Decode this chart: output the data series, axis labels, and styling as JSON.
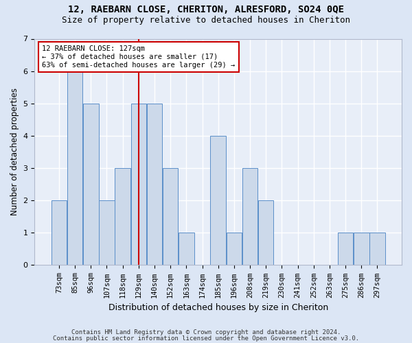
{
  "title1": "12, RAEBARN CLOSE, CHERITON, ALRESFORD, SO24 0QE",
  "title2": "Size of property relative to detached houses in Cheriton",
  "xlabel": "Distribution of detached houses by size in Cheriton",
  "ylabel": "Number of detached properties",
  "categories": [
    "73sqm",
    "85sqm",
    "96sqm",
    "107sqm",
    "118sqm",
    "129sqm",
    "140sqm",
    "152sqm",
    "163sqm",
    "174sqm",
    "185sqm",
    "196sqm",
    "208sqm",
    "219sqm",
    "230sqm",
    "241sqm",
    "252sqm",
    "263sqm",
    "275sqm",
    "286sqm",
    "297sqm"
  ],
  "values": [
    2,
    6,
    5,
    2,
    3,
    5,
    5,
    3,
    1,
    0,
    4,
    1,
    3,
    2,
    0,
    0,
    0,
    0,
    1,
    1,
    1
  ],
  "bar_color": "#ccd9ea",
  "bar_edge_color": "#5b8fc9",
  "reference_line_index": 5,
  "reference_line_color": "#cc0000",
  "annotation_line1": "12 RAEBARN CLOSE: 127sqm",
  "annotation_line2": "← 37% of detached houses are smaller (17)",
  "annotation_line3": "63% of semi-detached houses are larger (29) →",
  "annotation_box_facecolor": "#ffffff",
  "annotation_box_edgecolor": "#cc0000",
  "ylim": [
    0,
    7
  ],
  "yticks": [
    0,
    1,
    2,
    3,
    4,
    5,
    6,
    7
  ],
  "fig_facecolor": "#dce6f5",
  "ax_facecolor": "#e8eef8",
  "grid_color": "#ffffff",
  "footer1": "Contains HM Land Registry data © Crown copyright and database right 2024.",
  "footer2": "Contains public sector information licensed under the Open Government Licence v3.0.",
  "title1_fontsize": 10,
  "title2_fontsize": 9,
  "xlabel_fontsize": 9,
  "ylabel_fontsize": 8.5,
  "tick_fontsize": 7.5,
  "footer_fontsize": 6.5,
  "annotation_fontsize": 7.5
}
